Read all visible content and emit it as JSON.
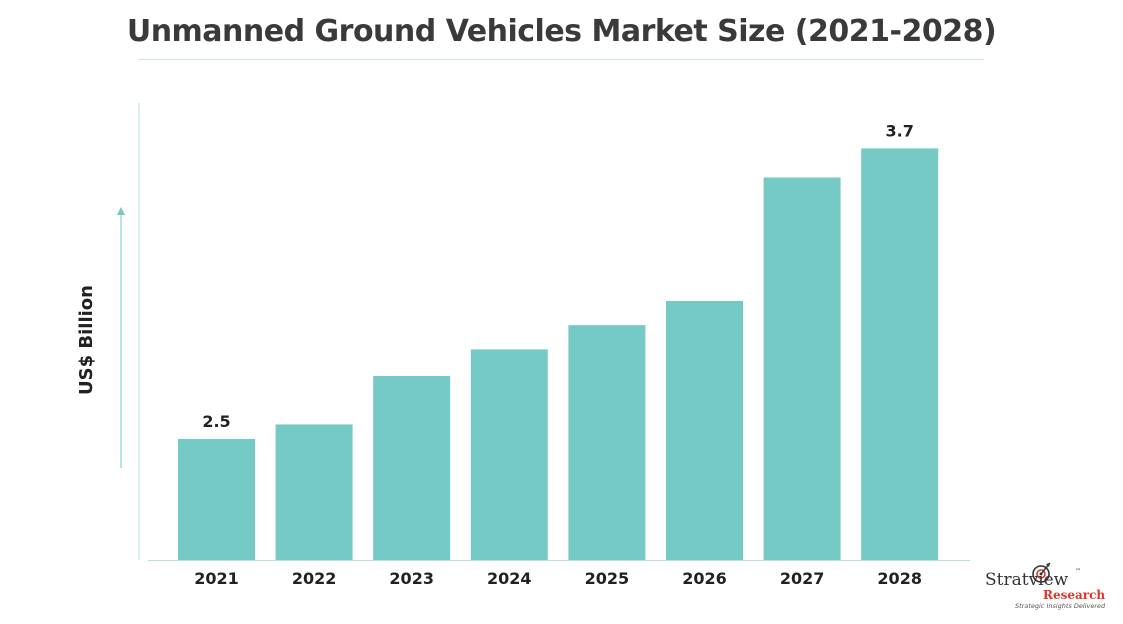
{
  "title": "Unmanned Ground Vehicles Market Size (2021-2028)",
  "colors": {
    "bar": "#76cac6",
    "axis": "#b7dfdc",
    "text": "#2b2b2b"
  },
  "logo": {
    "brand": "Stratview",
    "tm": "™",
    "sub": "Research",
    "tagline": "Strategic Insights Delivered"
  },
  "chart_data": {
    "type": "bar",
    "title": "Unmanned Ground Vehicles Market Size (2021-2028)",
    "xlabel": "",
    "ylabel": "US$ Billion",
    "categories": [
      "2021",
      "2022",
      "2023",
      "2024",
      "2025",
      "2026",
      "2027",
      "2028"
    ],
    "values": [
      2.5,
      2.56,
      2.76,
      2.87,
      2.97,
      3.07,
      3.58,
      3.7
    ],
    "data_labels": {
      "2021": "2.5",
      "2028": "3.7"
    },
    "ylim": [
      2.0,
      3.9
    ],
    "grid": false,
    "legend": "none"
  }
}
